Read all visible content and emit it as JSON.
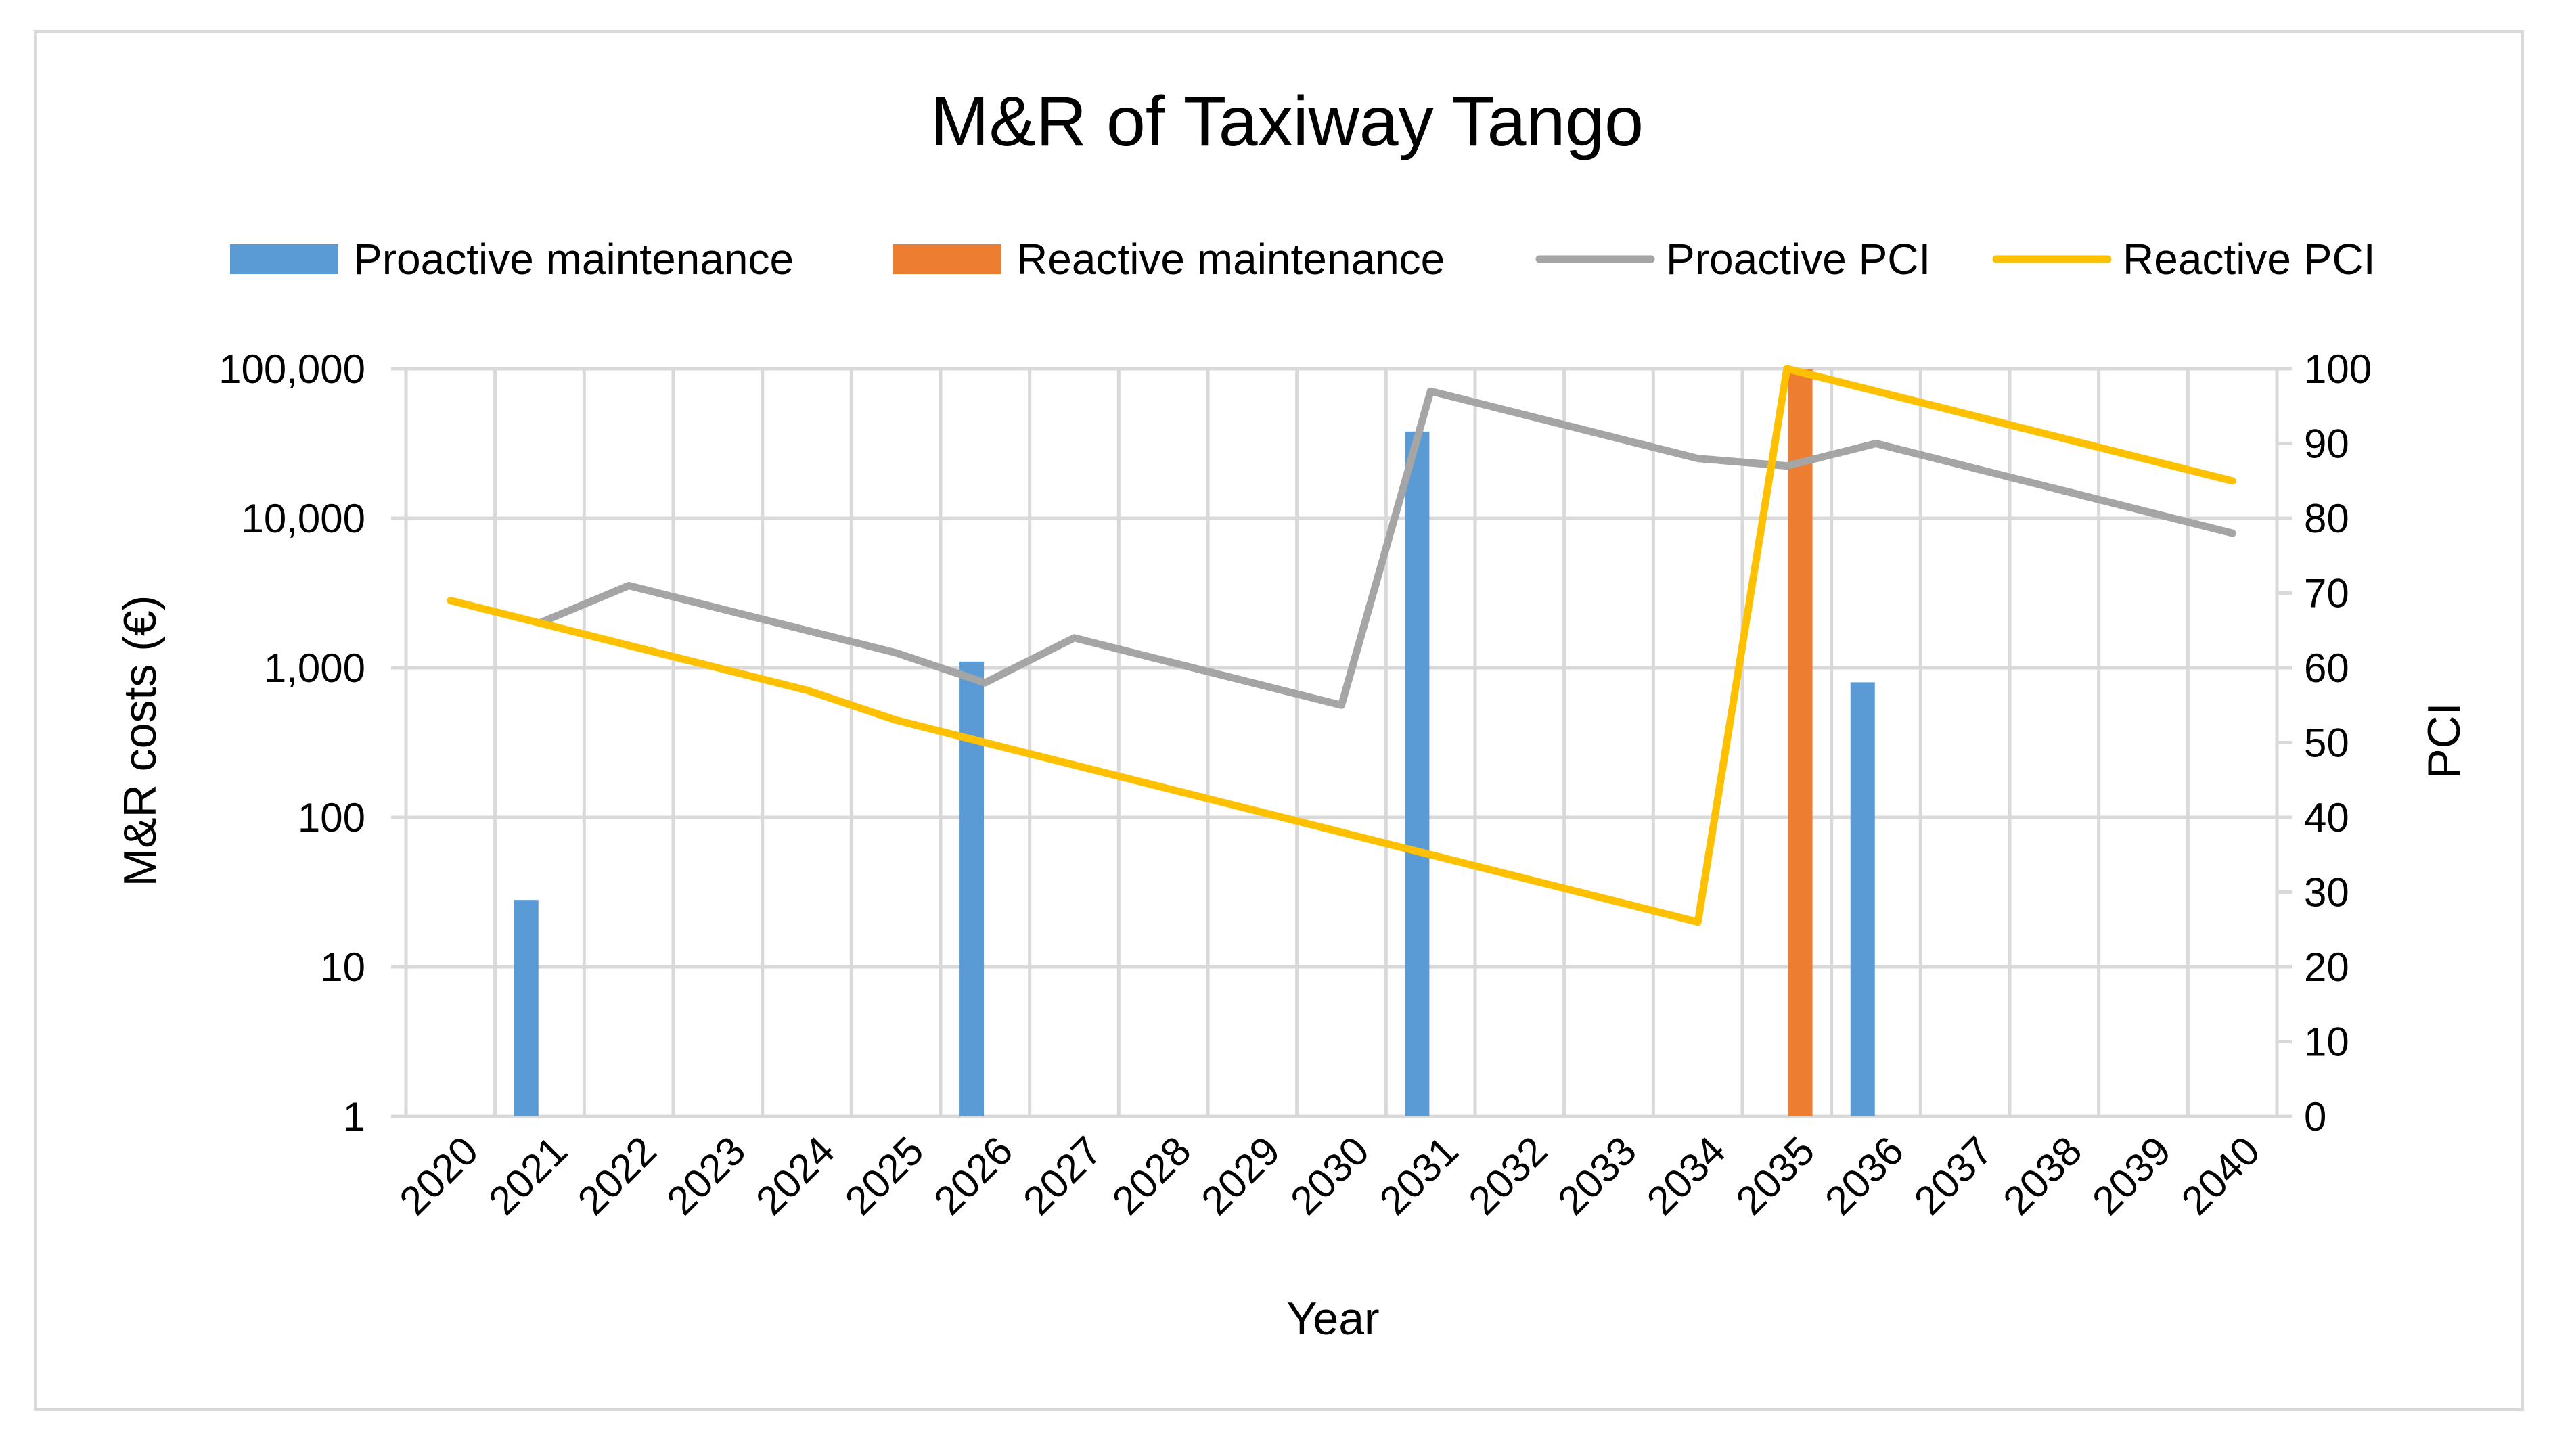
{
  "chart_data": {
    "type": "bar",
    "title": "M&R of Taxiway Tango",
    "xlabel": "Year",
    "ylabel": "M&R costs (€)",
    "y2label": "PCI",
    "categories": [
      "2020",
      "2021",
      "2022",
      "2023",
      "2024",
      "2025",
      "2026",
      "2027",
      "2028",
      "2029",
      "2030",
      "2031",
      "2032",
      "2033",
      "2034",
      "2035",
      "2036",
      "2037",
      "2038",
      "2039",
      "2040"
    ],
    "y_scale": "log",
    "ylim": [
      1,
      100000
    ],
    "y_ticks": [
      1,
      10,
      100,
      1000,
      10000,
      100000
    ],
    "y_tick_labels": [
      "1",
      "10",
      "100",
      "1,000",
      "10,000",
      "100,000"
    ],
    "y2lim": [
      0,
      100
    ],
    "y2_ticks": [
      0,
      10,
      20,
      30,
      40,
      50,
      60,
      70,
      80,
      90,
      100
    ],
    "y2_tick_labels": [
      "0",
      "10",
      "20",
      "30",
      "40",
      "50",
      "60",
      "70",
      "80",
      "90",
      "100"
    ],
    "legend_position": "top",
    "series": [
      {
        "name": "Proactive maintenance",
        "kind": "bar",
        "axis": "left",
        "color": "#5b9bd5",
        "points": [
          {
            "x": 2020.85,
            "value": 28
          },
          {
            "x": 2025.85,
            "value": 1100
          },
          {
            "x": 2030.85,
            "value": 38000
          },
          {
            "x": 2035.85,
            "value": 800
          }
        ]
      },
      {
        "name": "Reactive maintenance",
        "kind": "bar",
        "axis": "left",
        "color": "#ed7d31",
        "points": [
          {
            "x": 2035.15,
            "value": 100000
          }
        ]
      },
      {
        "name": "Proactive PCI",
        "kind": "line",
        "axis": "right",
        "color": "#a5a5a5",
        "points": [
          {
            "x": 2021.0,
            "y": 66
          },
          {
            "x": 2022.0,
            "y": 71
          },
          {
            "x": 2025.0,
            "y": 62
          },
          {
            "x": 2026.0,
            "y": 58
          },
          {
            "x": 2027.0,
            "y": 64
          },
          {
            "x": 2030.0,
            "y": 55
          },
          {
            "x": 2031.0,
            "y": 97
          },
          {
            "x": 2034.0,
            "y": 88
          },
          {
            "x": 2035.0,
            "y": 87
          },
          {
            "x": 2036.0,
            "y": 90
          },
          {
            "x": 2040.0,
            "y": 78
          }
        ]
      },
      {
        "name": "Reactive PCI",
        "kind": "line",
        "axis": "right",
        "color": "#ffc000",
        "points": [
          {
            "x": 2020.0,
            "y": 69
          },
          {
            "x": 2024.0,
            "y": 57
          },
          {
            "x": 2025.0,
            "y": 53
          },
          {
            "x": 2026.0,
            "y": 50
          },
          {
            "x": 2034.0,
            "y": 26
          },
          {
            "x": 2035.0,
            "y": 100
          },
          {
            "x": 2040.0,
            "y": 85
          }
        ]
      }
    ]
  }
}
